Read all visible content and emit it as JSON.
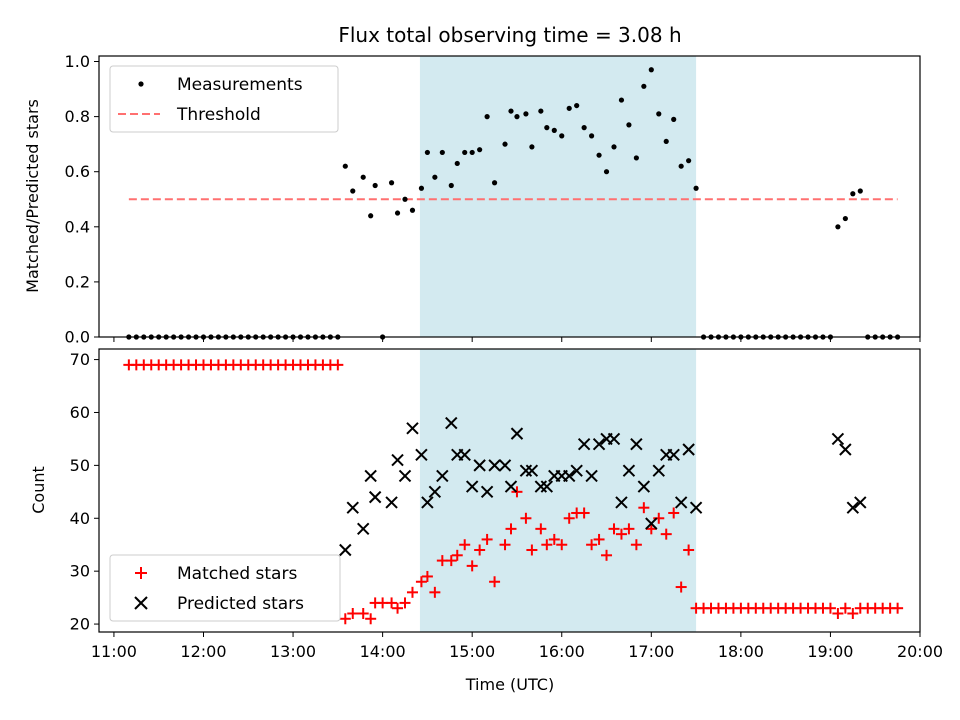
{
  "chart_data": [
    {
      "type": "scatter",
      "title": "Flux total observing time = 3.08 h",
      "ylabel": "Matched/Predicted stars",
      "xlabel": "",
      "xlim": [
        "11:00",
        "20:00"
      ],
      "ylim": [
        0,
        1.0
      ],
      "yticks": [
        "0.0",
        "0.2",
        "0.4",
        "0.6",
        "0.8",
        "1.0"
      ],
      "grid": false,
      "legend": "upper-left",
      "highlight_span": [
        "14:25",
        "17:30"
      ],
      "highlight_color": "#d3eaf0",
      "series": [
        {
          "name": "Measurements",
          "marker": "dot",
          "color": "#000000",
          "points": [
            [
              "11:10",
              0
            ],
            [
              "11:15",
              0
            ],
            [
              "11:20",
              0
            ],
            [
              "11:25",
              0
            ],
            [
              "11:30",
              0
            ],
            [
              "11:35",
              0
            ],
            [
              "11:40",
              0
            ],
            [
              "11:45",
              0
            ],
            [
              "11:50",
              0
            ],
            [
              "11:55",
              0
            ],
            [
              "12:00",
              0
            ],
            [
              "12:05",
              0
            ],
            [
              "12:10",
              0
            ],
            [
              "12:15",
              0
            ],
            [
              "12:20",
              0
            ],
            [
              "12:25",
              0
            ],
            [
              "12:30",
              0
            ],
            [
              "12:35",
              0
            ],
            [
              "12:40",
              0
            ],
            [
              "12:45",
              0
            ],
            [
              "12:50",
              0
            ],
            [
              "12:55",
              0
            ],
            [
              "13:00",
              0
            ],
            [
              "13:05",
              0
            ],
            [
              "13:10",
              0
            ],
            [
              "13:15",
              0
            ],
            [
              "13:20",
              0
            ],
            [
              "13:25",
              0
            ],
            [
              "13:30",
              0
            ],
            [
              "13:35",
              0.62
            ],
            [
              "13:40",
              0.53
            ],
            [
              "13:47",
              0.58
            ],
            [
              "13:52",
              0.44
            ],
            [
              "13:55",
              0.55
            ],
            [
              "14:00",
              0
            ],
            [
              "14:06",
              0.56
            ],
            [
              "14:10",
              0.45
            ],
            [
              "14:15",
              0.5
            ],
            [
              "14:20",
              0.46
            ],
            [
              "14:26",
              0.54
            ],
            [
              "14:30",
              0.67
            ],
            [
              "14:35",
              0.58
            ],
            [
              "14:40",
              0.67
            ],
            [
              "14:46",
              0.55
            ],
            [
              "14:50",
              0.63
            ],
            [
              "14:55",
              0.67
            ],
            [
              "15:00",
              0.67
            ],
            [
              "15:05",
              0.68
            ],
            [
              "15:10",
              0.8
            ],
            [
              "15:15",
              0.56
            ],
            [
              "15:22",
              0.7
            ],
            [
              "15:26",
              0.82
            ],
            [
              "15:30",
              0.8
            ],
            [
              "15:36",
              0.81
            ],
            [
              "15:40",
              0.69
            ],
            [
              "15:46",
              0.82
            ],
            [
              "15:50",
              0.76
            ],
            [
              "15:55",
              0.75
            ],
            [
              "16:00",
              0.73
            ],
            [
              "16:05",
              0.83
            ],
            [
              "16:10",
              0.84
            ],
            [
              "16:15",
              0.76
            ],
            [
              "16:20",
              0.73
            ],
            [
              "16:25",
              0.66
            ],
            [
              "16:30",
              0.6
            ],
            [
              "16:35",
              0.69
            ],
            [
              "16:40",
              0.86
            ],
            [
              "16:45",
              0.77
            ],
            [
              "16:50",
              0.65
            ],
            [
              "16:55",
              0.91
            ],
            [
              "17:00",
              0.97
            ],
            [
              "17:05",
              0.81
            ],
            [
              "17:10",
              0.71
            ],
            [
              "17:15",
              0.79
            ],
            [
              "17:20",
              0.62
            ],
            [
              "17:25",
              0.64
            ],
            [
              "17:30",
              0.54
            ],
            [
              "17:35",
              0
            ],
            [
              "17:40",
              0
            ],
            [
              "17:45",
              0
            ],
            [
              "17:50",
              0
            ],
            [
              "17:55",
              0
            ],
            [
              "18:00",
              0
            ],
            [
              "18:05",
              0
            ],
            [
              "18:10",
              0
            ],
            [
              "18:15",
              0
            ],
            [
              "18:20",
              0
            ],
            [
              "18:25",
              0
            ],
            [
              "18:30",
              0
            ],
            [
              "18:35",
              0
            ],
            [
              "18:40",
              0
            ],
            [
              "18:45",
              0
            ],
            [
              "18:50",
              0
            ],
            [
              "18:55",
              0
            ],
            [
              "19:00",
              0
            ],
            [
              "19:05",
              0.4
            ],
            [
              "19:10",
              0.43
            ],
            [
              "19:15",
              0.52
            ],
            [
              "19:20",
              0.53
            ],
            [
              "19:25",
              0
            ],
            [
              "19:30",
              0
            ],
            [
              "19:35",
              0
            ],
            [
              "19:40",
              0
            ],
            [
              "19:45",
              0
            ]
          ]
        },
        {
          "name": "Threshold",
          "marker": "dashed-line",
          "color": "#ff7070",
          "points": [
            [
              "11:10",
              0.5
            ],
            [
              "19:45",
              0.5
            ]
          ]
        }
      ]
    },
    {
      "type": "scatter",
      "title": "",
      "ylabel": "Count",
      "xlabel": "Time (UTC)",
      "xlim": [
        "11:00",
        "20:00"
      ],
      "ylim": [
        20,
        70
      ],
      "xticks": [
        "11:00",
        "12:00",
        "13:00",
        "14:00",
        "15:00",
        "16:00",
        "17:00",
        "18:00",
        "19:00",
        "20:00"
      ],
      "yticks": [
        "20",
        "30",
        "40",
        "50",
        "60",
        "70"
      ],
      "grid": false,
      "legend": "lower-left",
      "highlight_span": [
        "14:25",
        "17:30"
      ],
      "highlight_color": "#d3eaf0",
      "series": [
        {
          "name": "Matched stars",
          "marker": "plus",
          "color": "#ff0000",
          "points": [
            [
              "11:10",
              69
            ],
            [
              "11:15",
              69
            ],
            [
              "11:20",
              69
            ],
            [
              "11:25",
              69
            ],
            [
              "11:30",
              69
            ],
            [
              "11:35",
              69
            ],
            [
              "11:40",
              69
            ],
            [
              "11:45",
              69
            ],
            [
              "11:50",
              69
            ],
            [
              "11:55",
              69
            ],
            [
              "12:00",
              69
            ],
            [
              "12:05",
              69
            ],
            [
              "12:10",
              69
            ],
            [
              "12:15",
              69
            ],
            [
              "12:20",
              69
            ],
            [
              "12:25",
              69
            ],
            [
              "12:30",
              69
            ],
            [
              "12:35",
              69
            ],
            [
              "12:40",
              69
            ],
            [
              "12:45",
              69
            ],
            [
              "12:50",
              69
            ],
            [
              "12:55",
              69
            ],
            [
              "13:00",
              69
            ],
            [
              "13:05",
              69
            ],
            [
              "13:10",
              69
            ],
            [
              "13:15",
              69
            ],
            [
              "13:20",
              69
            ],
            [
              "13:25",
              69
            ],
            [
              "13:30",
              69
            ],
            [
              "13:35",
              21
            ],
            [
              "13:40",
              22
            ],
            [
              "13:47",
              22
            ],
            [
              "13:52",
              21
            ],
            [
              "13:55",
              24
            ],
            [
              "14:00",
              24
            ],
            [
              "14:06",
              24
            ],
            [
              "14:10",
              23
            ],
            [
              "14:15",
              24
            ],
            [
              "14:20",
              26
            ],
            [
              "14:26",
              28
            ],
            [
              "14:30",
              29
            ],
            [
              "14:35",
              26
            ],
            [
              "14:40",
              32
            ],
            [
              "14:46",
              32
            ],
            [
              "14:50",
              33
            ],
            [
              "14:55",
              35
            ],
            [
              "15:00",
              31
            ],
            [
              "15:05",
              34
            ],
            [
              "15:10",
              36
            ],
            [
              "15:15",
              28
            ],
            [
              "15:22",
              35
            ],
            [
              "15:26",
              38
            ],
            [
              "15:30",
              45
            ],
            [
              "15:36",
              40
            ],
            [
              "15:40",
              34
            ],
            [
              "15:46",
              38
            ],
            [
              "15:50",
              35
            ],
            [
              "15:55",
              36
            ],
            [
              "16:00",
              35
            ],
            [
              "16:05",
              40
            ],
            [
              "16:10",
              41
            ],
            [
              "16:15",
              41
            ],
            [
              "16:20",
              35
            ],
            [
              "16:25",
              36
            ],
            [
              "16:30",
              33
            ],
            [
              "16:35",
              38
            ],
            [
              "16:40",
              37
            ],
            [
              "16:45",
              38
            ],
            [
              "16:50",
              35
            ],
            [
              "16:55",
              42
            ],
            [
              "17:00",
              38
            ],
            [
              "17:05",
              40
            ],
            [
              "17:10",
              37
            ],
            [
              "17:15",
              41
            ],
            [
              "17:20",
              27
            ],
            [
              "17:25",
              34
            ],
            [
              "17:30",
              23
            ],
            [
              "17:35",
              23
            ],
            [
              "17:40",
              23
            ],
            [
              "17:45",
              23
            ],
            [
              "17:50",
              23
            ],
            [
              "17:55",
              23
            ],
            [
              "18:00",
              23
            ],
            [
              "18:05",
              23
            ],
            [
              "18:10",
              23
            ],
            [
              "18:15",
              23
            ],
            [
              "18:20",
              23
            ],
            [
              "18:25",
              23
            ],
            [
              "18:30",
              23
            ],
            [
              "18:35",
              23
            ],
            [
              "18:40",
              23
            ],
            [
              "18:45",
              23
            ],
            [
              "18:50",
              23
            ],
            [
              "18:55",
              23
            ],
            [
              "19:00",
              23
            ],
            [
              "19:05",
              22
            ],
            [
              "19:10",
              23
            ],
            [
              "19:15",
              22
            ],
            [
              "19:20",
              23
            ],
            [
              "19:25",
              23
            ],
            [
              "19:30",
              23
            ],
            [
              "19:35",
              23
            ],
            [
              "19:40",
              23
            ],
            [
              "19:45",
              23
            ]
          ]
        },
        {
          "name": "Predicted stars",
          "marker": "x",
          "color": "#000000",
          "points": [
            [
              "13:35",
              34
            ],
            [
              "13:40",
              42
            ],
            [
              "13:47",
              38
            ],
            [
              "13:52",
              48
            ],
            [
              "13:55",
              44
            ],
            [
              "14:06",
              43
            ],
            [
              "14:10",
              51
            ],
            [
              "14:15",
              48
            ],
            [
              "14:20",
              57
            ],
            [
              "14:26",
              52
            ],
            [
              "14:30",
              43
            ],
            [
              "14:35",
              45
            ],
            [
              "14:40",
              48
            ],
            [
              "14:46",
              58
            ],
            [
              "14:50",
              52
            ],
            [
              "14:55",
              52
            ],
            [
              "15:00",
              46
            ],
            [
              "15:05",
              50
            ],
            [
              "15:10",
              45
            ],
            [
              "15:15",
              50
            ],
            [
              "15:22",
              50
            ],
            [
              "15:26",
              46
            ],
            [
              "15:30",
              56
            ],
            [
              "15:36",
              49
            ],
            [
              "15:40",
              49
            ],
            [
              "15:46",
              46
            ],
            [
              "15:50",
              46
            ],
            [
              "15:55",
              48
            ],
            [
              "16:00",
              48
            ],
            [
              "16:05",
              48
            ],
            [
              "16:10",
              49
            ],
            [
              "16:15",
              54
            ],
            [
              "16:20",
              48
            ],
            [
              "16:25",
              54
            ],
            [
              "16:30",
              55
            ],
            [
              "16:35",
              55
            ],
            [
              "16:40",
              43
            ],
            [
              "16:45",
              49
            ],
            [
              "16:50",
              54
            ],
            [
              "16:55",
              46
            ],
            [
              "17:00",
              39
            ],
            [
              "17:05",
              49
            ],
            [
              "17:10",
              52
            ],
            [
              "17:15",
              52
            ],
            [
              "17:20",
              43
            ],
            [
              "17:25",
              53
            ],
            [
              "17:30",
              42
            ],
            [
              "19:05",
              55
            ],
            [
              "19:10",
              53
            ],
            [
              "19:15",
              42
            ],
            [
              "19:20",
              43
            ]
          ]
        }
      ]
    }
  ]
}
